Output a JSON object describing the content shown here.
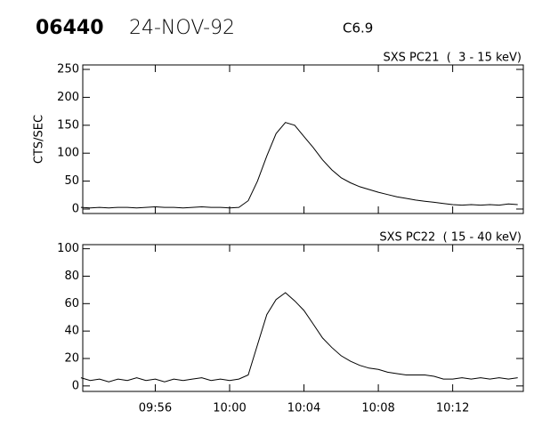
{
  "header": {
    "id": "06440",
    "date": "24-NOV-92",
    "class": "C6.9"
  },
  "chart_data": [
    {
      "type": "line",
      "title": "SXS PC21  (  3 - 15 keV)",
      "y_label": "CTS/SEC",
      "color": "#000000",
      "x": [
        592,
        592.5,
        593,
        593.5,
        594,
        594.5,
        595,
        595.5,
        596,
        596.5,
        597,
        597.5,
        598,
        598.5,
        599,
        599.5,
        600,
        600.5,
        601,
        601.5,
        602,
        602.5,
        603,
        603.5,
        604,
        604.5,
        605,
        605.5,
        606,
        606.5,
        607,
        607.5,
        608,
        608.5,
        609,
        609.5,
        610,
        610.5,
        611,
        611.5,
        612,
        612.5,
        613,
        613.5,
        614,
        614.5,
        615,
        615.5
      ],
      "values": [
        3,
        2,
        3,
        2,
        3,
        3,
        2,
        3,
        4,
        3,
        3,
        2,
        3,
        4,
        3,
        3,
        2,
        3,
        15,
        50,
        95,
        135,
        155,
        150,
        130,
        110,
        88,
        70,
        56,
        47,
        40,
        35,
        30,
        26,
        22,
        19,
        16,
        14,
        12,
        10,
        8,
        7,
        8,
        7,
        8,
        7,
        9,
        8
      ],
      "xlim": [
        592.1,
        615.8
      ],
      "xticks": [
        596,
        600,
        604,
        608,
        612
      ],
      "ylim": [
        -8,
        258
      ],
      "yticks": [
        0,
        50,
        100,
        150,
        200,
        250
      ]
    },
    {
      "type": "line",
      "title": "SXS PC22  ( 15 - 40 keV)",
      "color": "#000000",
      "x": [
        592,
        592.5,
        593,
        593.5,
        594,
        594.5,
        595,
        595.5,
        596,
        596.5,
        597,
        597.5,
        598,
        598.5,
        599,
        599.5,
        600,
        600.5,
        601,
        601.5,
        602,
        602.5,
        603,
        603.5,
        604,
        604.5,
        605,
        605.5,
        606,
        606.5,
        607,
        607.5,
        608,
        608.5,
        609,
        609.5,
        610,
        610.5,
        611,
        611.5,
        612,
        612.5,
        613,
        613.5,
        614,
        614.5,
        615,
        615.5
      ],
      "values": [
        6,
        4,
        5,
        3,
        5,
        4,
        6,
        4,
        5,
        3,
        5,
        4,
        5,
        6,
        4,
        5,
        4,
        5,
        8,
        30,
        52,
        63,
        68,
        62,
        55,
        45,
        35,
        28,
        22,
        18,
        15,
        13,
        12,
        10,
        9,
        8,
        8,
        8,
        7,
        5,
        5,
        6,
        5,
        6,
        5,
        6,
        5,
        6
      ],
      "xlim": [
        592.1,
        615.8
      ],
      "xticks": [
        {
          "value": 596,
          "label": "09:56"
        },
        {
          "value": 600,
          "label": "10:00"
        },
        {
          "value": 604,
          "label": "10:04"
        },
        {
          "value": 608,
          "label": "10:08"
        },
        {
          "value": 612,
          "label": "10:12"
        }
      ],
      "ylim": [
        -4,
        103
      ],
      "yticks": [
        0,
        20,
        40,
        60,
        80,
        100
      ]
    }
  ]
}
